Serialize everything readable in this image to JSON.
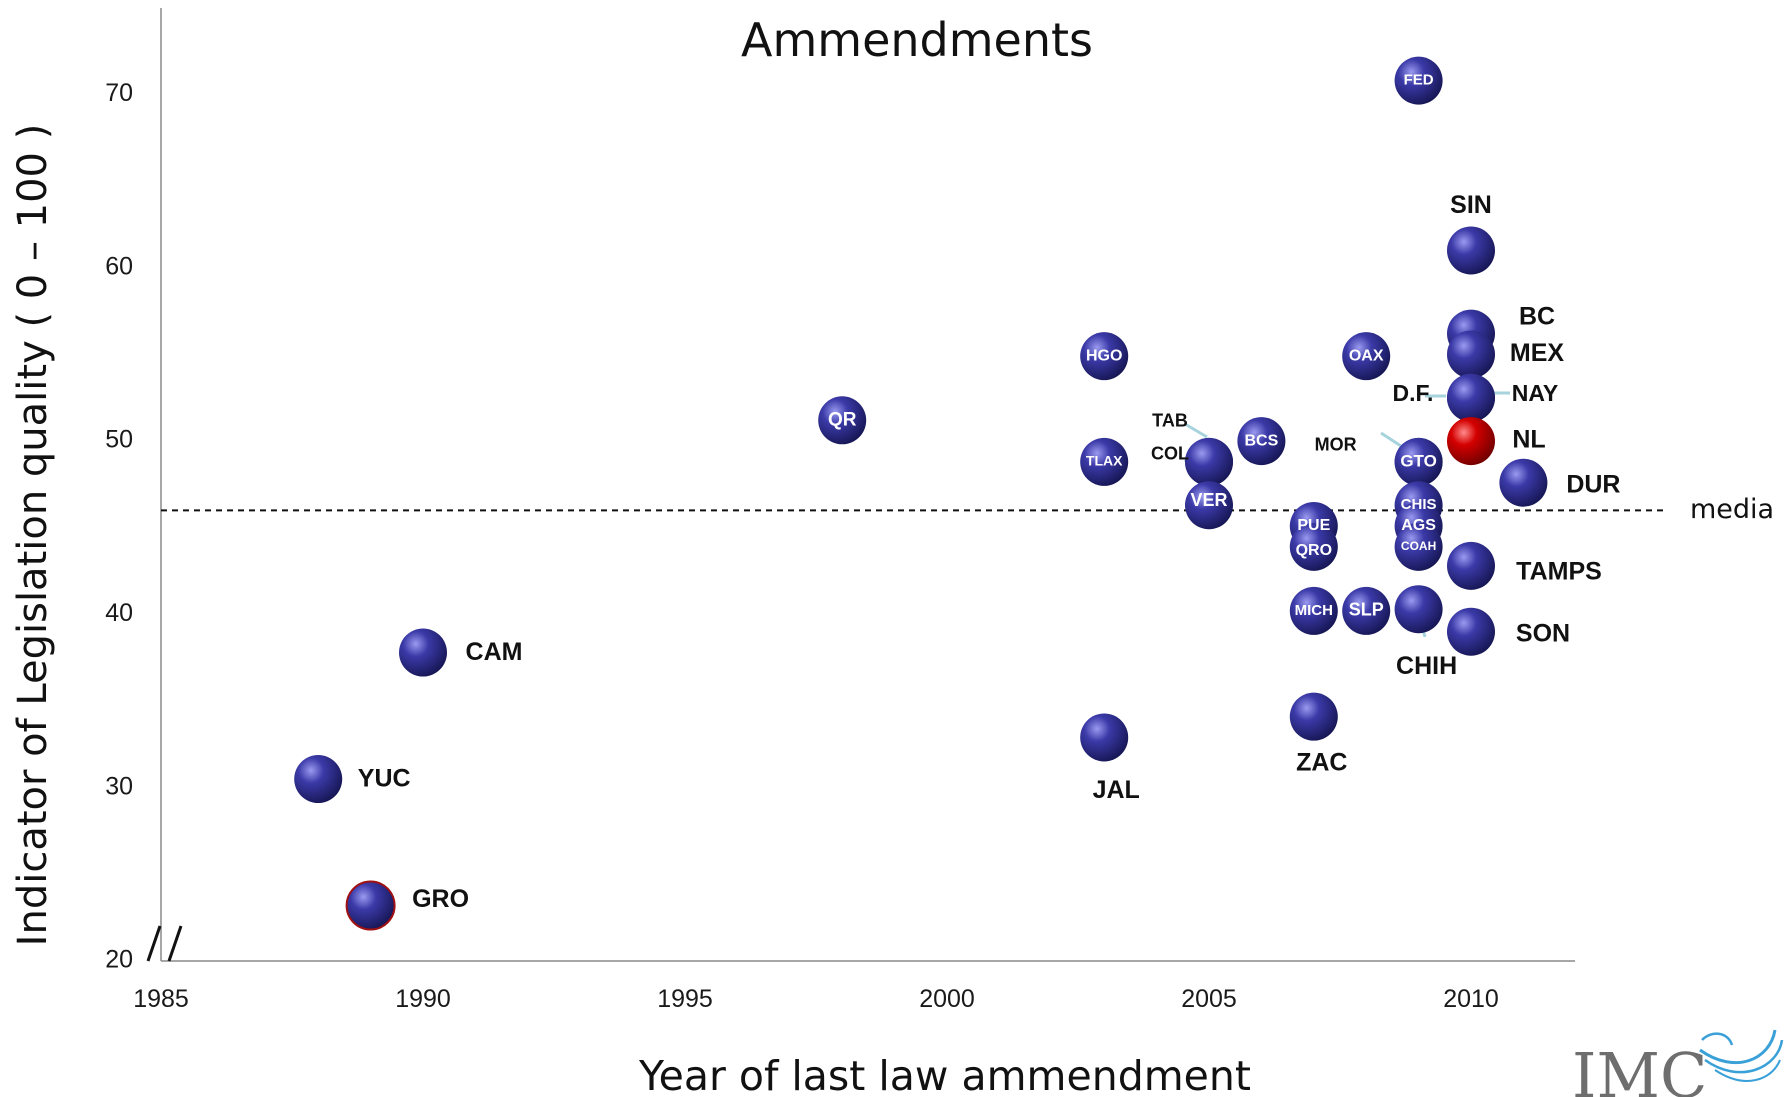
{
  "chart_data": {
    "type": "scatter",
    "title": "Ammendments",
    "xlabel": "Year of last law ammendment",
    "ylabel": "Indicator of Legislation quality  ( 0 – 100 )",
    "xlim": [
      1985,
      2012
    ],
    "ylim": [
      20,
      75
    ],
    "x_ticks": [
      "1985",
      "1990",
      "1995",
      "2000",
      "2005",
      "2010"
    ],
    "y_ticks": [
      "20",
      "30",
      "40",
      "50",
      "60",
      "70"
    ],
    "axis_break": "//",
    "grid": false,
    "reference_line": {
      "label": "media",
      "y": 46,
      "style": "dashed"
    },
    "colors": {
      "default": "#2d2a8c",
      "highlight": "#c00000"
    },
    "points": [
      {
        "label": "FED",
        "x": 2009,
        "y": 70.8
      },
      {
        "label": "SIN",
        "x": 2010,
        "y": 61.0
      },
      {
        "label": "BC",
        "x": 2010,
        "y": 56.2
      },
      {
        "label": "MEX",
        "x": 2010,
        "y": 55.0
      },
      {
        "label": "D.F.",
        "x": 2010,
        "y": 52.5
      },
      {
        "label": "NAY",
        "x": 2010,
        "y": 52.5
      },
      {
        "label": "NL",
        "x": 2010,
        "y": 50.0,
        "highlight": true
      },
      {
        "label": "DUR",
        "x": 2011,
        "y": 47.6
      },
      {
        "label": "TAMPS",
        "x": 2010,
        "y": 42.8
      },
      {
        "label": "SON",
        "x": 2010,
        "y": 39.0
      },
      {
        "label": "HGO",
        "x": 2003,
        "y": 54.9
      },
      {
        "label": "OAX",
        "x": 2008,
        "y": 54.9
      },
      {
        "label": "QR",
        "x": 1998,
        "y": 51.2
      },
      {
        "label": "TLAX",
        "x": 2003,
        "y": 48.8
      },
      {
        "label": "BCS",
        "x": 2006,
        "y": 50.0
      },
      {
        "label": "TAB",
        "x": 2005,
        "y": 48.8
      },
      {
        "label": "COL",
        "x": 2005,
        "y": 48.8
      },
      {
        "label": "VER",
        "x": 2005,
        "y": 46.3
      },
      {
        "label": "MOR",
        "x": 2009,
        "y": 48.8
      },
      {
        "label": "GTO",
        "x": 2009,
        "y": 48.8
      },
      {
        "label": "CHIS",
        "x": 2009,
        "y": 46.3
      },
      {
        "label": "AGS",
        "x": 2009,
        "y": 45.1
      },
      {
        "label": "COAH",
        "x": 2009,
        "y": 43.9
      },
      {
        "label": "PUE",
        "x": 2007,
        "y": 45.1
      },
      {
        "label": "QRO",
        "x": 2007,
        "y": 43.9
      },
      {
        "label": "MICH",
        "x": 2007,
        "y": 40.2
      },
      {
        "label": "SLP",
        "x": 2008,
        "y": 40.2
      },
      {
        "label": "CHIH",
        "x": 2009,
        "y": 40.3
      },
      {
        "label": "ZAC",
        "x": 2007,
        "y": 34.1
      },
      {
        "label": "JAL",
        "x": 2003,
        "y": 32.9
      },
      {
        "label": "CAM",
        "x": 1990,
        "y": 37.8
      },
      {
        "label": "YUC",
        "x": 1988,
        "y": 30.5
      },
      {
        "label": "GRO",
        "x": 1989,
        "y": 23.2
      }
    ]
  },
  "logo": {
    "text": "IMC"
  }
}
